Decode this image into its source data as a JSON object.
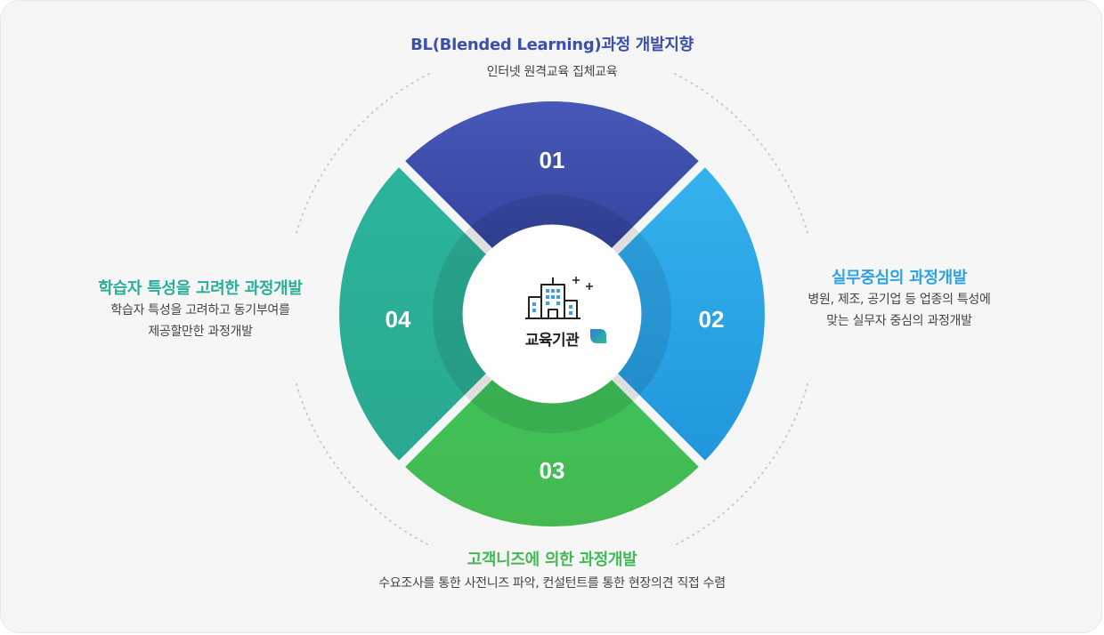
{
  "center": {
    "label": "교육기관"
  },
  "segments": [
    {
      "number": "01",
      "title": "BL(Blended Learning)과정 개발지향",
      "description": [
        "인터넷 원격교육 집체교육"
      ],
      "color": "#3d4fae"
    },
    {
      "number": "02",
      "title": "실무중심의 과정개발",
      "description": [
        "병원, 제조, 공기업 등 업종의 특성에",
        "맞는 실무자 중심의 과정개발"
      ],
      "color": "#2ba3e6"
    },
    {
      "number": "03",
      "title": "고객니즈에 의한 과정개발",
      "description": [
        "수요조사를 통한 사전니즈 파악, 컨설턴트를 통한 현장의견 직접 수렴"
      ],
      "color": "#42b956"
    },
    {
      "number": "04",
      "title": "학습자 특성을 고려한 과정개발",
      "description": [
        "학습자 특성을 고려하고 동기부여를",
        "제공할만한 과정개발"
      ],
      "color": "#2aae97"
    }
  ]
}
